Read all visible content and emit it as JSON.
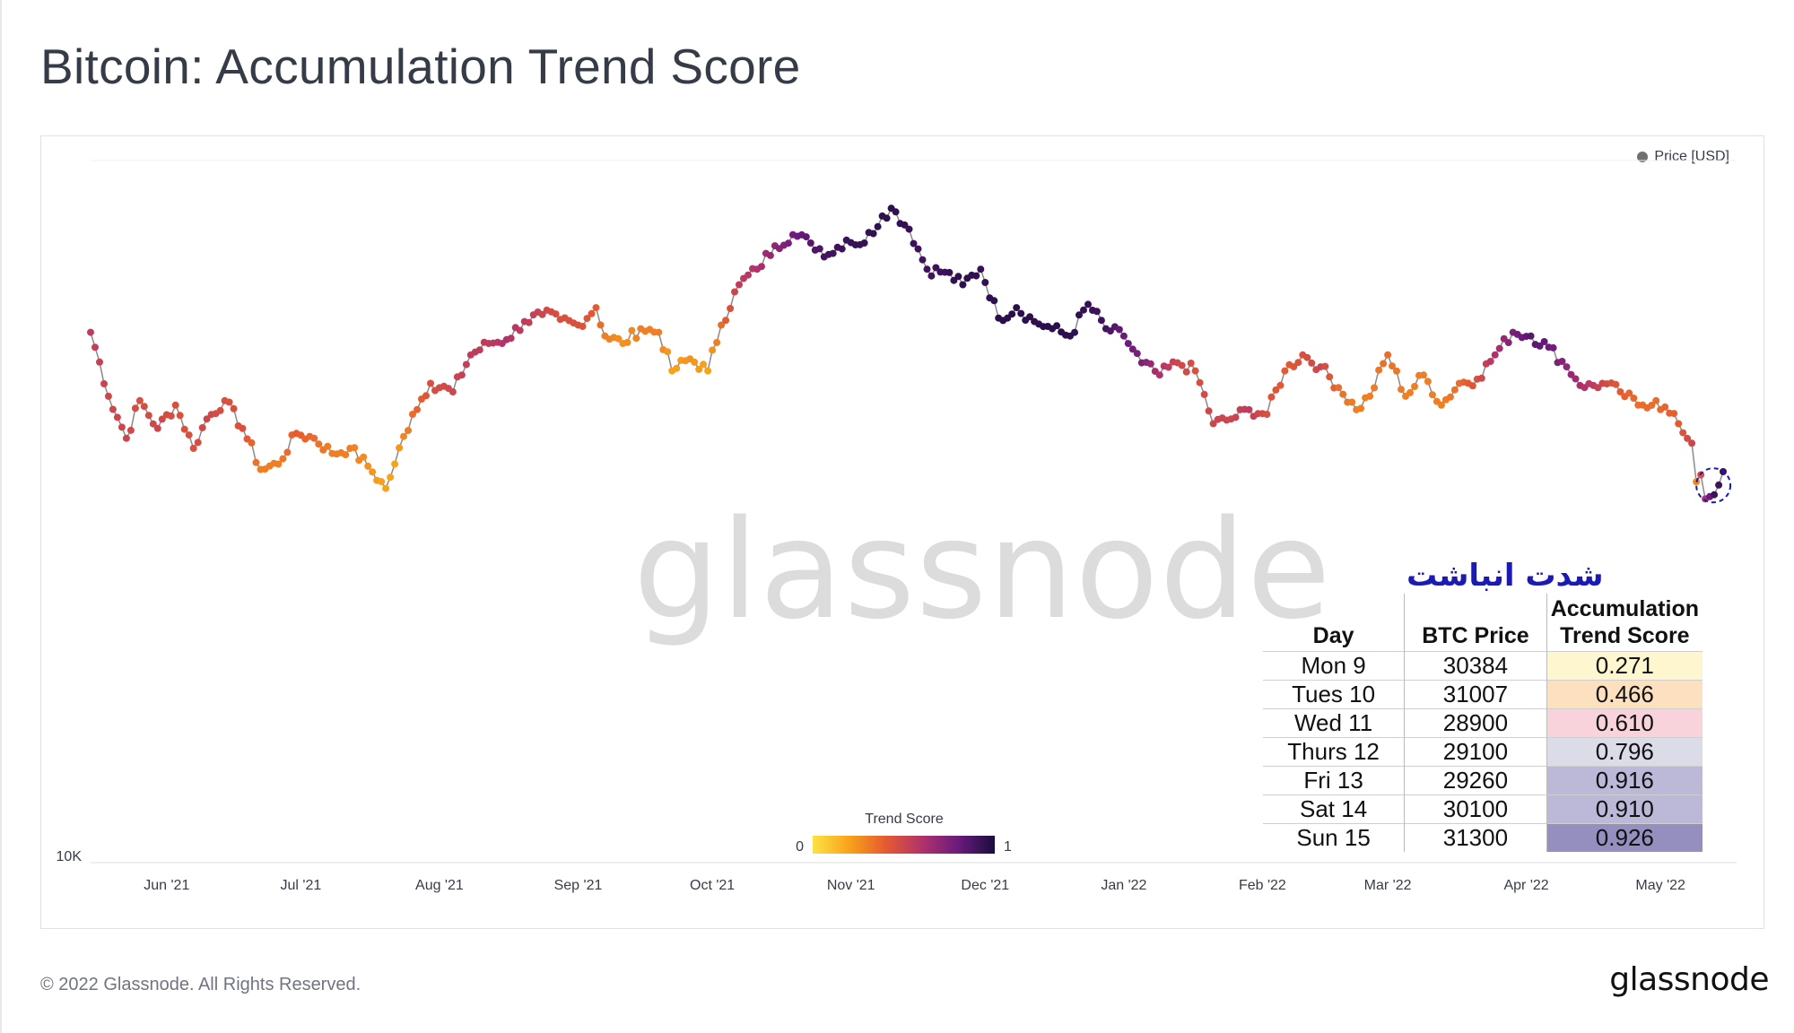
{
  "page": {
    "title": "Bitcoin: Accumulation Trend Score",
    "copyright": "© 2022 Glassnode. All Rights Reserved.",
    "brand": "glassnode",
    "watermark": "glassnode"
  },
  "legend": {
    "label": "Price [USD]",
    "color": "#707070"
  },
  "colorbar": {
    "title": "Trend Score",
    "min_label": "0",
    "max_label": "1",
    "colors": [
      "#fce244",
      "#f9a31a",
      "#e55b30",
      "#b1326b",
      "#6a1b7c",
      "#1a0c3f"
    ]
  },
  "overlay": {
    "title": "شدت انباشت",
    "headers": {
      "day": "Day",
      "price": "BTC Price",
      "score_line1": "Accumulation",
      "score_line2": "Trend Score"
    },
    "rows": [
      {
        "day": "Mon 9",
        "price": "30384",
        "score": "0.271",
        "color": "#fef6cf"
      },
      {
        "day": "Tues 10",
        "price": "31007",
        "score": "0.466",
        "color": "#fde0bf"
      },
      {
        "day": "Wed 11",
        "price": "28900",
        "score": "0.610",
        "color": "#f8d3dc"
      },
      {
        "day": "Thurs 12",
        "price": "29100",
        "score": "0.796",
        "color": "#dcdbe8"
      },
      {
        "day": "Fri 13",
        "price": "29260",
        "score": "0.916",
        "color": "#bbb8d8"
      },
      {
        "day": "Sat 14",
        "price": "30100",
        "score": "0.910",
        "color": "#bbb8d8"
      },
      {
        "day": "Sun 15",
        "price": "31300",
        "score": "0.926",
        "color": "#958fbf"
      }
    ]
  },
  "chart_data": {
    "type": "scatter",
    "title": "Bitcoin: Accumulation Trend Score",
    "y_scale": "log",
    "y_tick_labels": [
      "10K"
    ],
    "y_tick_values": [
      10000
    ],
    "ylim": [
      10000,
      75000
    ],
    "xlim": [
      "2021-05-15",
      "2022-05-18"
    ],
    "x_tick_labels": [
      "Jun '21",
      "Jul '21",
      "Aug '21",
      "Sep '21",
      "Oct '21",
      "Nov '21",
      "Dec '21",
      "Jan '22",
      "Feb '22",
      "Mar '22",
      "Apr '22",
      "May '22"
    ],
    "x_tick_dates": [
      "2021-06-01",
      "2021-07-01",
      "2021-08-01",
      "2021-09-01",
      "2021-10-01",
      "2021-11-01",
      "2021-12-01",
      "2022-01-01",
      "2022-02-01",
      "2022-03-01",
      "2022-04-01",
      "2022-05-01"
    ],
    "series": [
      {
        "name": "Price [USD]",
        "color_by": "Trend Score",
        "points": [
          [
            "2021-05-15",
            47000,
            0.55
          ],
          [
            "2021-05-19",
            39000,
            0.5
          ],
          [
            "2021-05-23",
            34500,
            0.5
          ],
          [
            "2021-05-26",
            38500,
            0.45
          ],
          [
            "2021-05-30",
            35500,
            0.5
          ],
          [
            "2021-06-03",
            38000,
            0.45
          ],
          [
            "2021-06-07",
            33500,
            0.45
          ],
          [
            "2021-06-10",
            36500,
            0.5
          ],
          [
            "2021-06-14",
            38500,
            0.45
          ],
          [
            "2021-06-18",
            35500,
            0.45
          ],
          [
            "2021-06-22",
            31500,
            0.3
          ],
          [
            "2021-06-26",
            32000,
            0.3
          ],
          [
            "2021-06-30",
            35000,
            0.4
          ],
          [
            "2021-07-04",
            34500,
            0.35
          ],
          [
            "2021-07-08",
            33000,
            0.3
          ],
          [
            "2021-07-12",
            33500,
            0.3
          ],
          [
            "2021-07-16",
            31800,
            0.25
          ],
          [
            "2021-07-20",
            29800,
            0.2
          ],
          [
            "2021-07-22",
            32000,
            0.2
          ],
          [
            "2021-07-26",
            37000,
            0.35
          ],
          [
            "2021-07-30",
            40500,
            0.45
          ],
          [
            "2021-08-04",
            39500,
            0.5
          ],
          [
            "2021-08-08",
            44000,
            0.55
          ],
          [
            "2021-08-12",
            45500,
            0.55
          ],
          [
            "2021-08-16",
            46000,
            0.6
          ],
          [
            "2021-08-20",
            48500,
            0.55
          ],
          [
            "2021-08-24",
            49500,
            0.5
          ],
          [
            "2021-08-28",
            48800,
            0.45
          ],
          [
            "2021-09-01",
            48000,
            0.45
          ],
          [
            "2021-09-05",
            50500,
            0.4
          ],
          [
            "2021-09-07",
            46500,
            0.3
          ],
          [
            "2021-09-11",
            45500,
            0.25
          ],
          [
            "2021-09-15",
            47500,
            0.3
          ],
          [
            "2021-09-19",
            47000,
            0.3
          ],
          [
            "2021-09-22",
            42000,
            0.2
          ],
          [
            "2021-09-26",
            43500,
            0.25
          ],
          [
            "2021-09-30",
            42000,
            0.2
          ],
          [
            "2021-10-03",
            48000,
            0.35
          ],
          [
            "2021-10-07",
            54000,
            0.55
          ],
          [
            "2021-10-11",
            56500,
            0.6
          ],
          [
            "2021-10-15",
            60500,
            0.7
          ],
          [
            "2021-10-19",
            62500,
            0.78
          ],
          [
            "2021-10-23",
            61000,
            0.85
          ],
          [
            "2021-10-27",
            59000,
            0.9
          ],
          [
            "2021-10-31",
            61500,
            0.92
          ],
          [
            "2021-11-04",
            61000,
            0.93
          ],
          [
            "2021-11-08",
            66000,
            0.95
          ],
          [
            "2021-11-10",
            67500,
            0.95
          ],
          [
            "2021-11-14",
            63500,
            0.93
          ],
          [
            "2021-11-18",
            56500,
            0.9
          ],
          [
            "2021-11-22",
            56000,
            0.92
          ],
          [
            "2021-11-26",
            54000,
            0.95
          ],
          [
            "2021-11-30",
            56500,
            0.93
          ],
          [
            "2021-12-04",
            49000,
            0.96
          ],
          [
            "2021-12-08",
            50500,
            0.96
          ],
          [
            "2021-12-12",
            48500,
            0.95
          ],
          [
            "2021-12-16",
            47500,
            0.96
          ],
          [
            "2021-12-20",
            46500,
            0.95
          ],
          [
            "2021-12-24",
            51000,
            0.93
          ],
          [
            "2021-12-28",
            47500,
            0.9
          ],
          [
            "2022-01-01",
            46500,
            0.8
          ],
          [
            "2022-01-05",
            43000,
            0.75
          ],
          [
            "2022-01-09",
            41500,
            0.6
          ],
          [
            "2022-01-13",
            43000,
            0.5
          ],
          [
            "2022-01-17",
            42000,
            0.45
          ],
          [
            "2022-01-21",
            36000,
            0.5
          ],
          [
            "2022-01-25",
            36500,
            0.5
          ],
          [
            "2022-01-29",
            37500,
            0.55
          ],
          [
            "2022-02-02",
            37000,
            0.45
          ],
          [
            "2022-02-06",
            42000,
            0.4
          ],
          [
            "2022-02-10",
            44000,
            0.45
          ],
          [
            "2022-02-14",
            42500,
            0.5
          ],
          [
            "2022-02-18",
            40000,
            0.35
          ],
          [
            "2022-02-22",
            37500,
            0.3
          ],
          [
            "2022-02-25",
            39000,
            0.3
          ],
          [
            "2022-03-01",
            44000,
            0.35
          ],
          [
            "2022-03-05",
            39000,
            0.3
          ],
          [
            "2022-03-09",
            41500,
            0.3
          ],
          [
            "2022-03-13",
            38000,
            0.3
          ],
          [
            "2022-03-17",
            40500,
            0.35
          ],
          [
            "2022-03-21",
            41000,
            0.45
          ],
          [
            "2022-03-25",
            44000,
            0.6
          ],
          [
            "2022-03-29",
            47000,
            0.75
          ],
          [
            "2022-04-02",
            46500,
            0.85
          ],
          [
            "2022-04-06",
            45000,
            0.8
          ],
          [
            "2022-04-10",
            42500,
            0.7
          ],
          [
            "2022-04-14",
            40000,
            0.6
          ],
          [
            "2022-04-18",
            40500,
            0.5
          ],
          [
            "2022-04-22",
            39500,
            0.4
          ],
          [
            "2022-04-26",
            38000,
            0.35
          ],
          [
            "2022-04-30",
            38500,
            0.35
          ],
          [
            "2022-05-05",
            36000,
            0.4
          ],
          [
            "2022-05-08",
            34000,
            0.5
          ],
          [
            "2022-05-09",
            30384,
            0.271
          ],
          [
            "2022-05-10",
            31007,
            0.466
          ],
          [
            "2022-05-11",
            28900,
            0.61
          ],
          [
            "2022-05-12",
            29100,
            0.796
          ],
          [
            "2022-05-13",
            29260,
            0.916
          ],
          [
            "2022-05-14",
            30100,
            0.91
          ],
          [
            "2022-05-15",
            31300,
            0.926
          ]
        ]
      }
    ],
    "grid": false,
    "legend_position": "top-right",
    "highlight": {
      "from": "2022-05-09",
      "to": "2022-05-15",
      "style": "dashed circle"
    }
  }
}
